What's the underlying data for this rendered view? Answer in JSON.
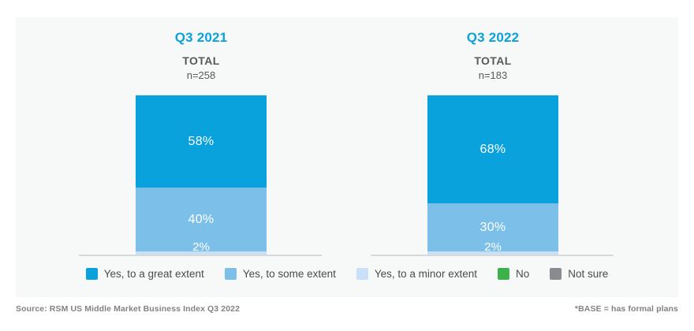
{
  "colors": {
    "great": "#09a2dd",
    "some": "#7cc0e9",
    "minor": "#c8e1f6",
    "no": "#3db24a",
    "not_sure": "#898b8e",
    "header_blue": "#0aa1dc",
    "baseline_gray": "#d8d9da"
  },
  "legend": [
    {
      "label": "Yes, to a great extent",
      "color_key": "great"
    },
    {
      "label": "Yes, to some extent",
      "color_key": "some"
    },
    {
      "label": "Yes, to a minor extent",
      "color_key": "minor"
    },
    {
      "label": "No",
      "color_key": "no"
    },
    {
      "label": "Not sure",
      "color_key": "not_sure"
    }
  ],
  "chart_data": {
    "type": "bar",
    "stacked": true,
    "ylim": [
      0,
      100
    ],
    "legend_position": "bottom",
    "columns": [
      {
        "period": "Q3 2021",
        "total_label": "TOTAL",
        "n_label": "n=258",
        "segments": [
          {
            "name": "Yes, to a great extent",
            "color_key": "great",
            "value": 58,
            "label": "58%"
          },
          {
            "name": "Yes, to some extent",
            "color_key": "some",
            "value": 40,
            "label": "40%"
          },
          {
            "name": "Yes, to a minor extent",
            "color_key": "minor",
            "value": 2,
            "label": "2%"
          },
          {
            "name": "No",
            "color_key": "no",
            "value": 1,
            "label": ""
          },
          {
            "name": "Not sure",
            "color_key": "not_sure",
            "value": 0,
            "label": ""
          }
        ]
      },
      {
        "period": "Q3 2022",
        "total_label": "TOTAL",
        "n_label": "n=183",
        "segments": [
          {
            "name": "Yes, to a great extent",
            "color_key": "great",
            "value": 68,
            "label": "68%"
          },
          {
            "name": "Yes, to some extent",
            "color_key": "some",
            "value": 30,
            "label": "30%"
          },
          {
            "name": "Yes, to a minor extent",
            "color_key": "minor",
            "value": 2,
            "label": "2%"
          },
          {
            "name": "No",
            "color_key": "no",
            "value": 1,
            "label": ""
          },
          {
            "name": "Not sure",
            "color_key": "not_sure",
            "value": 0,
            "label": ""
          }
        ]
      }
    ]
  },
  "footer": {
    "source_note": "Source: RSM US Middle Market Business Index Q3 2022",
    "base_note": "*BASE = has formal plans"
  }
}
